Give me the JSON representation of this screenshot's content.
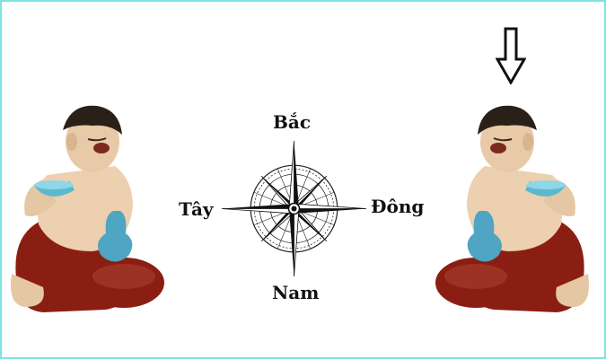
{
  "compass": {
    "north": "Bắc",
    "south": "Nam",
    "east": "Đông",
    "west": "Tây"
  },
  "colors": {
    "border": "#7fe3e3",
    "robe": "#8b1e12",
    "skin": "#e8c9a8",
    "bowl": "#5bb8cf",
    "text": "#111111"
  },
  "icons": {
    "indicator": "down-arrow-icon",
    "compass": "compass-rose-icon",
    "figure": "laughing-figurine"
  }
}
